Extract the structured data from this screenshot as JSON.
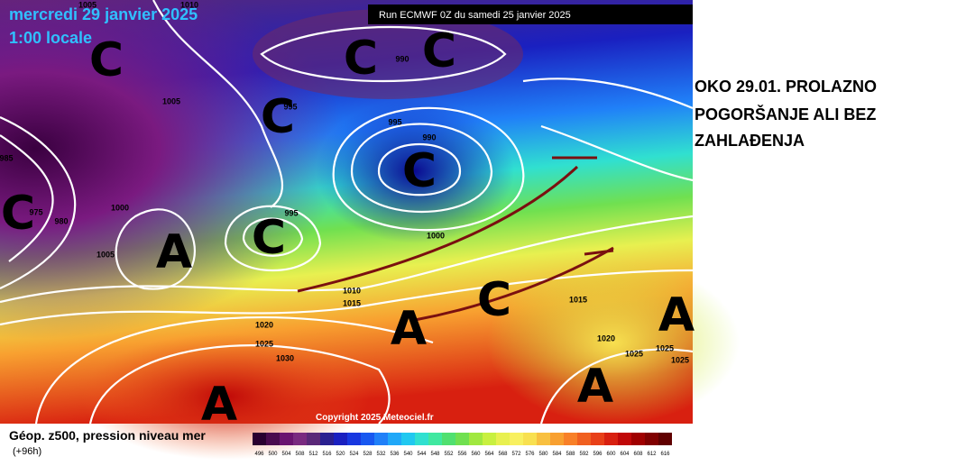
{
  "header": {
    "date": "mercredi 29 janvier 2025",
    "time": "1:00 locale",
    "run": "Run ECMWF 0Z du samedi 25 janvier 2025"
  },
  "annotation": {
    "lines": [
      "OKO 29.01. PROLAZNO",
      "POGORŠANJE ALI BEZ",
      "ZAHLAĐENJA"
    ]
  },
  "copyright": "Copyright 2025 Meteociel.fr",
  "systems": [
    "C",
    "C",
    "C",
    "C",
    "C",
    "C",
    "C",
    "A",
    "A",
    "C",
    "A",
    "A",
    "A"
  ],
  "isobar_labels": [
    1005,
    995,
    990,
    995,
    990,
    1000,
    995,
    1005,
    1000,
    1010,
    1015,
    1020,
    1025,
    1030,
    1015,
    1020,
    1025,
    1025,
    1025,
    975,
    980,
    985,
    1010,
    1005
  ],
  "legend": {
    "title": "Géop. z500, pression niveau mer",
    "lead": "(+96h)",
    "scale": [
      496,
      500,
      504,
      508,
      512,
      516,
      520,
      524,
      528,
      532,
      536,
      540,
      544,
      548,
      552,
      556,
      560,
      564,
      568,
      572,
      576,
      580,
      584,
      588,
      592,
      596,
      600,
      604,
      608,
      612,
      616
    ],
    "colors": [
      "#2a0030",
      "#4a0a4e",
      "#6a1470",
      "#7a2a80",
      "#5a2878",
      "#2a2090",
      "#1a20c0",
      "#1838e0",
      "#1858f0",
      "#2080f8",
      "#20a8f8",
      "#20c8f0",
      "#30e0d0",
      "#40e8a0",
      "#50e070",
      "#70e050",
      "#a0e840",
      "#c8f040",
      "#e8f050",
      "#f8f060",
      "#f8e050",
      "#f8c040",
      "#f8a030",
      "#f88028",
      "#f06020",
      "#e84018",
      "#d82010",
      "#c00808",
      "#a00000",
      "#800000",
      "#600000"
    ]
  }
}
